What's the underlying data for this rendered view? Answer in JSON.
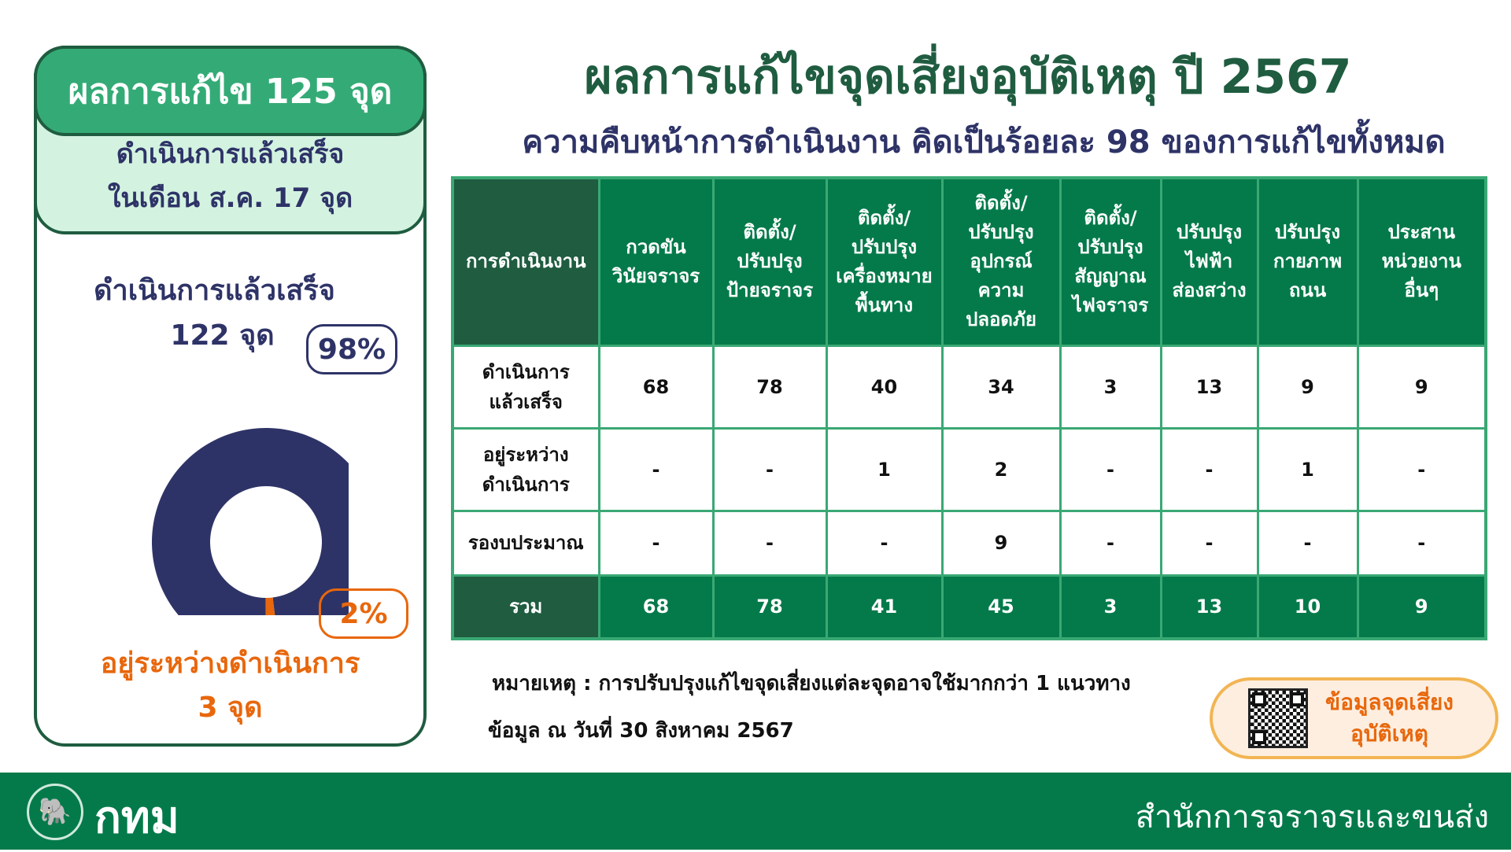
{
  "summary_card": {
    "headline": "ผลการแก้ไข 125 จุด",
    "month_line1": "ดำเนินการแล้วเสร็จ",
    "month_line2": "ในเดือน ส.ค. 17 จุด",
    "done_label": "ดำเนินการแล้วเสร็จ",
    "done_count": "122 จุด",
    "done_percent": "98%",
    "progress_percent": "2%",
    "progress_label": "อยู่ระหว่างดำเนินการ",
    "progress_count": "3 จุด",
    "donut": {
      "completed": 98,
      "in_progress": 2,
      "colors": {
        "completed": "#2e3367",
        "in_progress": "#e8670c"
      }
    }
  },
  "header": {
    "title": "ผลการแก้ไขจุดเสี่ยงอุบัติเหตุ ปี 2567",
    "subtitle": "ความคืบหน้าการดำเนินงาน คิดเป็นร้อยละ 98 ของการแก้ไขทั้งหมด"
  },
  "table": {
    "headers": [
      "การดำเนินงาน",
      "กวดขัน\nวินัยจราจร",
      "ติดตั้ง/\nปรับปรุง\nป้ายจราจร",
      "ติดตั้ง/\nปรับปรุง\nเครื่องหมาย\nพื้นทาง",
      "ติดตั้ง/\nปรับปรุง\nอุปกรณ์\nความ\nปลอดภัย",
      "ติดตั้ง/\nปรับปรุง\nสัญญาณ\nไฟจราจร",
      "ปรับปรุง\nไฟฟ้า\nส่องสว่าง",
      "ปรับปรุง\nกายภาพ\nถนน",
      "ประสาน\nหน่วยงาน\nอื่นๆ"
    ],
    "rows": [
      [
        "ดำเนินการ\nแล้วเสร็จ",
        "68",
        "78",
        "40",
        "34",
        "3",
        "13",
        "9",
        "9"
      ],
      [
        "อยู่ระหว่าง\nดำเนินการ",
        "-",
        "-",
        "1",
        "2",
        "-",
        "-",
        "1",
        "-"
      ],
      [
        "รองบประมาณ",
        "-",
        "-",
        "-",
        "9",
        "-",
        "-",
        "-",
        "-"
      ],
      [
        "รวม",
        "68",
        "78",
        "41",
        "45",
        "3",
        "13",
        "10",
        "9"
      ]
    ]
  },
  "note": "หมายเหตุ : การปรับปรุงแก้ไขจุดเสี่ยงแต่ละจุดอาจใช้มากกว่า 1 แนวทาง",
  "data_date": "ข้อมูล ณ วันที่ 30 สิงหาคม 2567",
  "qr_button": {
    "line1": "ข้อมูลจุดเสี่ยง",
    "line2": "อุบัติเหตุ"
  },
  "footer": {
    "logo_text": "กทม",
    "department": "สำนักการจราจรและขนส่ง"
  },
  "colors": {
    "primary_green": "#047a4a",
    "dark_green": "#1f5c40",
    "navy": "#2e3367",
    "orange": "#e8670c"
  }
}
